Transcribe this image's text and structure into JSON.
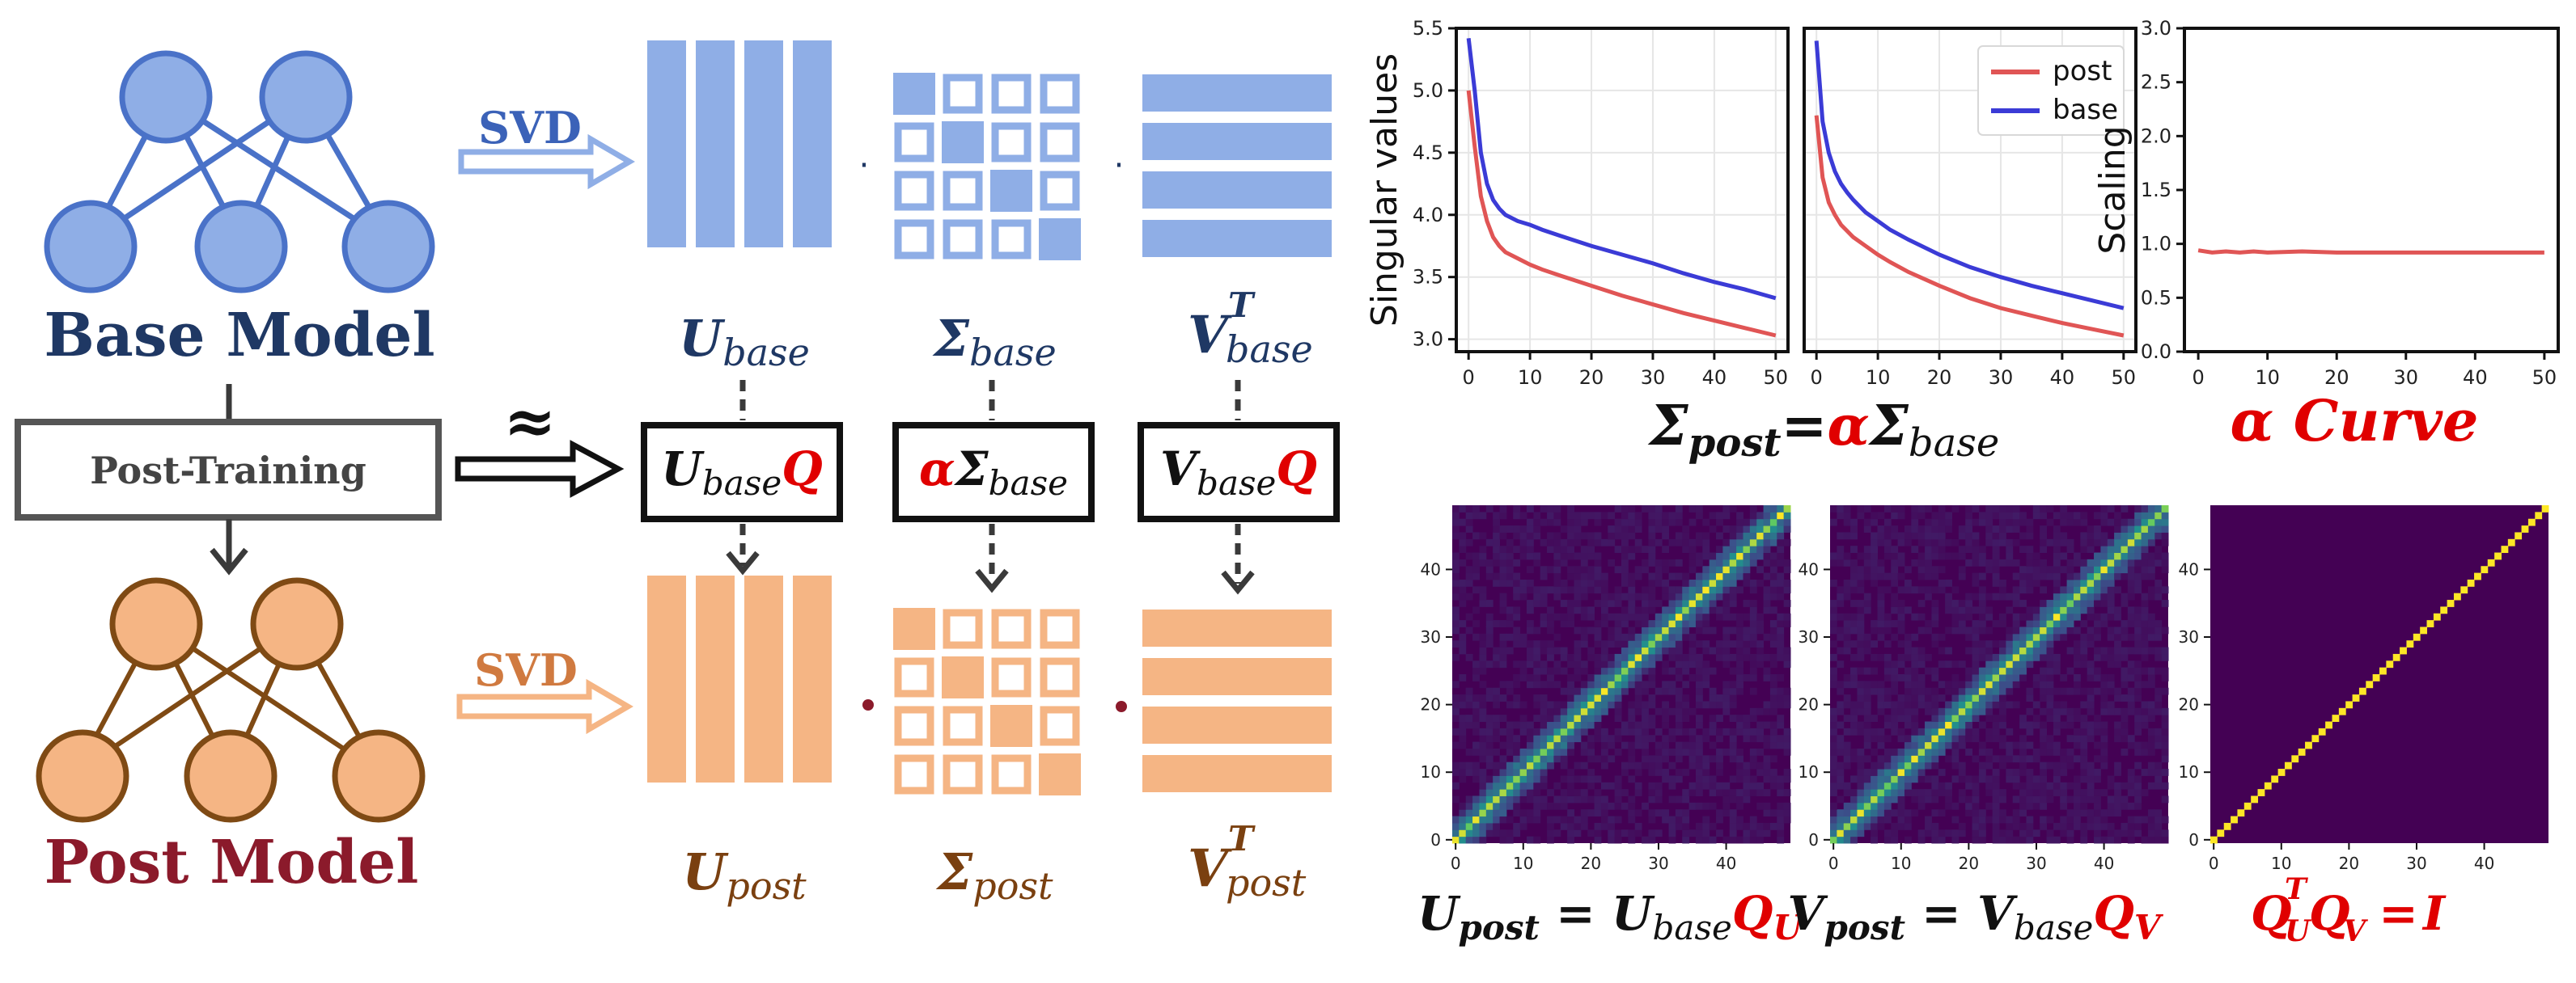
{
  "left": {
    "base_model_label": "Base Model",
    "post_model_label": "Post Model",
    "post_training_label": "Post-Training",
    "svd_label_top": "SVD",
    "svd_label_bottom": "SVD",
    "approx_symbol": "≈",
    "dot_symbol": "·",
    "colors": {
      "base": "#8faee6",
      "base_stroke": "#4a72c8",
      "base_text": "#1f3864",
      "post": "#f5b584",
      "post_stroke": "#7f4a14",
      "post_text": "#8b1a2b",
      "post_mat_text": "#7a4010",
      "red": "#e00000"
    }
  },
  "equations": {
    "u_base": {
      "main": "U",
      "sub": "base"
    },
    "sigma_base": {
      "main": "Σ",
      "sub": "base"
    },
    "v_base": {
      "main": "V",
      "sup": "T",
      "sub": "base"
    },
    "u_base_q": {
      "main": "U",
      "sub": "base",
      "tail": "Q"
    },
    "alpha_sigma_base": {
      "alpha": "α",
      "main": "Σ",
      "sub": "base"
    },
    "v_base_q": {
      "main": "V",
      "sub": "base",
      "tail": "Q"
    },
    "u_post": {
      "main": "U",
      "sub": "post"
    },
    "sigma_post": {
      "main": "Σ",
      "sub": "post"
    },
    "v_post": {
      "main": "V",
      "sup": "T",
      "sub": "post"
    },
    "caption_sigma": {
      "lhs": "Σ",
      "lhs_sub": "post",
      "eq": "=",
      "alpha": "α",
      "rhs": "Σ",
      "rhs_sub": "base"
    },
    "caption_alpha": {
      "alpha": "α",
      "text": " Curve"
    },
    "caption_u": {
      "lhs": "U",
      "lhs_sub": "post",
      "eq": " = ",
      "rhs": "U",
      "rhs_sub": "base",
      "q": "Q",
      "q_sub": "U"
    },
    "caption_v": {
      "lhs": "V",
      "lhs_sub": "post",
      "eq": " = ",
      "rhs": "V",
      "rhs_sub": "base",
      "q": "Q",
      "q_sub": "V"
    },
    "caption_i": {
      "q1": "Q",
      "q1_sup": "T",
      "q1_sub": "U",
      "q2": "Q",
      "q2_sub": "V",
      "eq": " = ",
      "i": "I"
    }
  },
  "chart_data": [
    {
      "type": "line",
      "ylabel": "Singular values",
      "xlim": [
        -2,
        52
      ],
      "ylim": [
        2.9,
        5.5
      ],
      "xticks": [
        "0",
        "10",
        "20",
        "30",
        "40",
        "50"
      ],
      "yticks": [
        "3.0",
        "3.5",
        "4.0",
        "4.5",
        "5.0",
        "5.5"
      ],
      "grid": true,
      "series": [
        {
          "name": "post",
          "color": "#e05555",
          "x": [
            0,
            1,
            2,
            3,
            4,
            5,
            6,
            8,
            10,
            12,
            15,
            20,
            25,
            30,
            35,
            40,
            45,
            50
          ],
          "y": [
            5.0,
            4.55,
            4.15,
            3.95,
            3.82,
            3.75,
            3.7,
            3.65,
            3.6,
            3.56,
            3.51,
            3.43,
            3.35,
            3.28,
            3.21,
            3.15,
            3.09,
            3.03
          ]
        },
        {
          "name": "base",
          "color": "#3b3bd6",
          "x": [
            0,
            1,
            2,
            3,
            4,
            5,
            6,
            8,
            10,
            12,
            15,
            20,
            25,
            30,
            35,
            40,
            45,
            50
          ],
          "y": [
            5.42,
            5.0,
            4.5,
            4.25,
            4.12,
            4.05,
            4.0,
            3.95,
            3.92,
            3.88,
            3.83,
            3.75,
            3.68,
            3.61,
            3.53,
            3.46,
            3.4,
            3.33
          ]
        }
      ]
    },
    {
      "type": "line",
      "xlim": [
        -2,
        52
      ],
      "ylim": [
        2.9,
        5.5
      ],
      "xticks": [
        "0",
        "10",
        "20",
        "30",
        "40",
        "50"
      ],
      "grid": true,
      "legend": "top-right",
      "series": [
        {
          "name": "post",
          "color": "#e05555",
          "x": [
            0,
            1,
            2,
            3,
            4,
            5,
            6,
            8,
            10,
            12,
            15,
            20,
            25,
            30,
            35,
            40,
            45,
            50
          ],
          "y": [
            4.8,
            4.3,
            4.1,
            4.0,
            3.92,
            3.87,
            3.82,
            3.75,
            3.68,
            3.62,
            3.54,
            3.43,
            3.33,
            3.25,
            3.19,
            3.13,
            3.08,
            3.03
          ]
        },
        {
          "name": "base",
          "color": "#3b3bd6",
          "x": [
            0,
            1,
            2,
            3,
            4,
            5,
            6,
            8,
            10,
            12,
            15,
            20,
            25,
            30,
            35,
            40,
            45,
            50
          ],
          "y": [
            5.4,
            4.75,
            4.5,
            4.35,
            4.25,
            4.18,
            4.12,
            4.02,
            3.95,
            3.88,
            3.8,
            3.68,
            3.58,
            3.5,
            3.43,
            3.37,
            3.31,
            3.25
          ]
        }
      ]
    },
    {
      "type": "line",
      "ylabel": "Scaling",
      "xlim": [
        -2,
        52
      ],
      "ylim": [
        0.0,
        3.0
      ],
      "xticks": [
        "0",
        "10",
        "20",
        "30",
        "40",
        "50"
      ],
      "yticks": [
        "0.0",
        "0.5",
        "1.0",
        "1.5",
        "2.0",
        "2.5",
        "3.0"
      ],
      "series": [
        {
          "name": "alpha",
          "color": "#e05555",
          "x": [
            0,
            2,
            4,
            6,
            8,
            10,
            15,
            20,
            25,
            30,
            35,
            40,
            45,
            50
          ],
          "y": [
            0.94,
            0.92,
            0.93,
            0.92,
            0.93,
            0.92,
            0.93,
            0.92,
            0.92,
            0.92,
            0.92,
            0.92,
            0.92,
            0.92
          ]
        }
      ]
    },
    {
      "type": "heatmap",
      "name": "U",
      "xticks": [
        "0",
        "10",
        "20",
        "30",
        "40"
      ],
      "yticks": [
        "0",
        "10",
        "20",
        "30",
        "40"
      ],
      "size": 50
    },
    {
      "type": "heatmap",
      "name": "V",
      "xticks": [
        "0",
        "10",
        "20",
        "30",
        "40"
      ],
      "yticks": [
        "0",
        "10",
        "20",
        "30",
        "40"
      ],
      "size": 50
    },
    {
      "type": "heatmap",
      "name": "I",
      "xticks": [
        "0",
        "10",
        "20",
        "30",
        "40"
      ],
      "yticks": [
        "0",
        "10",
        "20",
        "30",
        "40"
      ],
      "size": 50
    }
  ]
}
